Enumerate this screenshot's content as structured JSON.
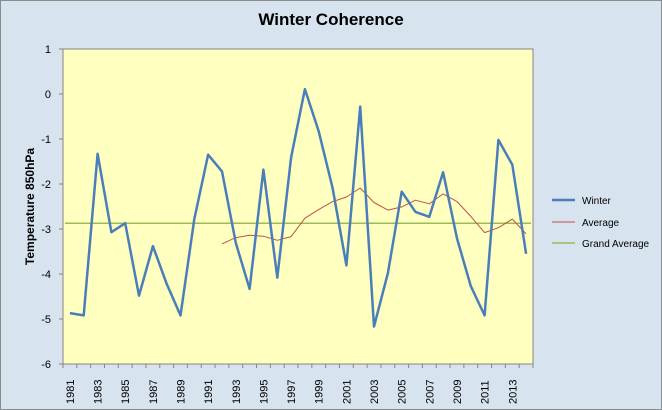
{
  "chart_data": {
    "type": "line",
    "title": "Winter Coherence",
    "xlabel": "",
    "ylabel": "Temperature 850hPa",
    "ylim": [
      -6,
      1
    ],
    "yticks": [
      1,
      0,
      -1,
      -2,
      -3,
      -4,
      -5,
      -6
    ],
    "xlim": [
      1981,
      2014
    ],
    "xticks": [
      1981,
      1983,
      1985,
      1987,
      1989,
      1991,
      1993,
      1995,
      1997,
      1999,
      2001,
      2003,
      2005,
      2007,
      2009,
      2011,
      2013
    ],
    "legend_position": "right",
    "grid": false,
    "plot_background": "#ffffc0",
    "series": [
      {
        "name": "Winter",
        "color": "#4a7ebb",
        "x": [
          1981,
          1982,
          1983,
          1984,
          1985,
          1986,
          1987,
          1988,
          1989,
          1990,
          1991,
          1992,
          1993,
          1994,
          1995,
          1996,
          1997,
          1998,
          1999,
          2000,
          2001,
          2002,
          2003,
          2004,
          2005,
          2006,
          2007,
          2008,
          2009,
          2010,
          2011,
          2012,
          2013,
          2014
        ],
        "values": [
          -4.87,
          -4.92,
          -1.33,
          -3.07,
          -2.87,
          -4.48,
          -3.38,
          -4.22,
          -4.92,
          -2.78,
          -1.35,
          -1.72,
          -3.31,
          -4.33,
          -1.68,
          -4.08,
          -1.41,
          0.11,
          -0.83,
          -2.09,
          -3.81,
          -0.28,
          -5.17,
          -3.98,
          -2.17,
          -2.62,
          -2.73,
          -1.74,
          -3.21,
          -4.27,
          -4.92,
          -1.02,
          -1.57,
          -3.55
        ]
      },
      {
        "name": "Average",
        "color": "#c0504d",
        "x": [
          1992,
          1993,
          1994,
          1995,
          1996,
          1997,
          1998,
          1999,
          2000,
          2001,
          2002,
          2003,
          2004,
          2005,
          2006,
          2007,
          2008,
          2009,
          2010,
          2011,
          2012,
          2013,
          2014
        ],
        "values": [
          -3.33,
          -3.19,
          -3.14,
          -3.16,
          -3.25,
          -3.17,
          -2.76,
          -2.57,
          -2.39,
          -2.29,
          -2.09,
          -2.41,
          -2.58,
          -2.51,
          -2.36,
          -2.44,
          -2.22,
          -2.39,
          -2.72,
          -3.08,
          -2.97,
          -2.78,
          -3.11
        ]
      },
      {
        "name": "Grand Average",
        "color": "#9bbb59",
        "x": [
          1981,
          2014
        ],
        "values": [
          -2.87,
          -2.87
        ]
      }
    ]
  }
}
